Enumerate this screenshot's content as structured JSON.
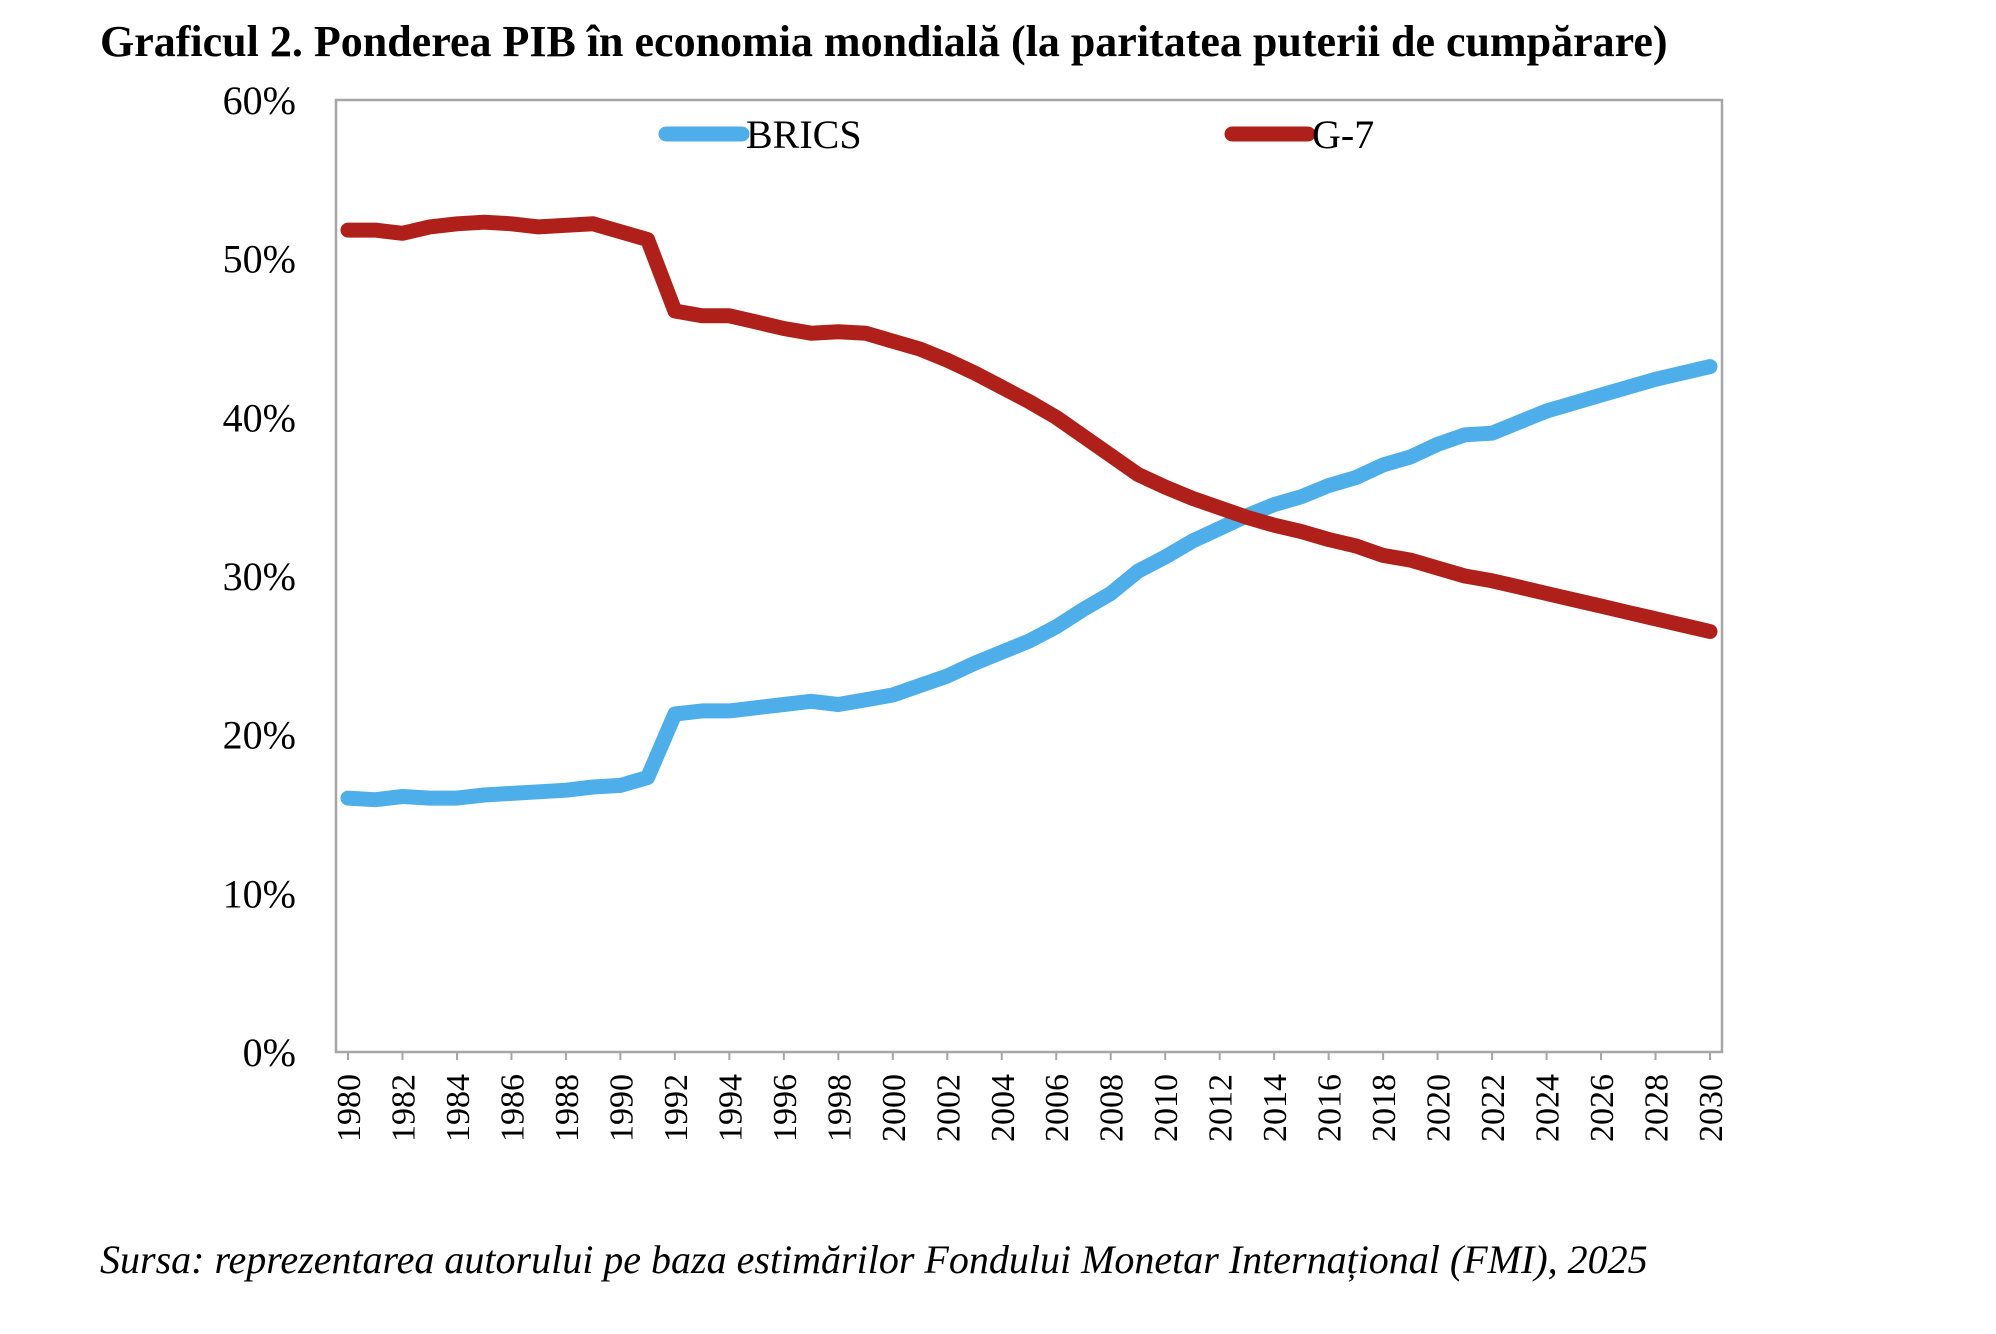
{
  "title": "Graficul 2. Ponderea PIB în economia mondială (la paritatea puterii de cumpărare)",
  "source": "Sursa: reprezentarea autorului pe baza estimărilor Fondului Monetar Internațional (FMI), 2025",
  "chart_data": {
    "type": "line",
    "title": "Graficul 2. Ponderea PIB în economia mondială (la paritatea puterii de cumpărare)",
    "xlabel": "",
    "ylabel": "",
    "ylim": [
      0,
      60
    ],
    "yticks": [
      "0%",
      "10%",
      "20%",
      "30%",
      "40%",
      "50%",
      "60%"
    ],
    "xticks": [
      "1980",
      "1982",
      "1984",
      "1986",
      "1988",
      "1990",
      "1992",
      "1994",
      "1996",
      "1998",
      "2000",
      "2002",
      "2004",
      "2006",
      "2008",
      "2010",
      "2012",
      "2014",
      "2016",
      "2018",
      "2020",
      "2022",
      "2024",
      "2026",
      "2028",
      "2030"
    ],
    "grid": false,
    "legend": "top",
    "x": [
      1980,
      1981,
      1982,
      1983,
      1984,
      1985,
      1986,
      1987,
      1988,
      1989,
      1990,
      1991,
      1992,
      1993,
      1994,
      1995,
      1996,
      1997,
      1998,
      1999,
      2000,
      2001,
      2002,
      2003,
      2004,
      2005,
      2006,
      2007,
      2008,
      2009,
      2010,
      2011,
      2012,
      2013,
      2014,
      2015,
      2016,
      2017,
      2018,
      2019,
      2020,
      2021,
      2022,
      2023,
      2024,
      2025,
      2026,
      2027,
      2028,
      2029,
      2030
    ],
    "series": [
      {
        "name": "BRICS",
        "color": "#4eaeea",
        "values": [
          16.0,
          15.9,
          16.1,
          16.0,
          16.0,
          16.2,
          16.3,
          16.4,
          16.5,
          16.7,
          16.8,
          17.3,
          21.3,
          21.5,
          21.5,
          21.7,
          21.9,
          22.1,
          21.9,
          22.2,
          22.5,
          23.1,
          23.7,
          24.5,
          25.2,
          25.9,
          26.8,
          27.9,
          28.9,
          30.3,
          31.2,
          32.2,
          33.0,
          33.8,
          34.5,
          35.0,
          35.7,
          36.2,
          37.0,
          37.5,
          38.3,
          38.9,
          39.0,
          39.7,
          40.4,
          40.9,
          41.4,
          41.9,
          42.4,
          42.8,
          43.2
        ]
      },
      {
        "name": "G-7",
        "color": "#b0201b",
        "values": [
          51.8,
          51.8,
          51.6,
          52.0,
          52.2,
          52.3,
          52.2,
          52.0,
          52.1,
          52.2,
          51.7,
          51.2,
          46.7,
          46.4,
          46.4,
          46.0,
          45.6,
          45.3,
          45.4,
          45.3,
          44.8,
          44.3,
          43.6,
          42.8,
          41.9,
          41.0,
          40.0,
          38.8,
          37.6,
          36.4,
          35.6,
          34.9,
          34.3,
          33.7,
          33.2,
          32.8,
          32.3,
          31.9,
          31.3,
          31.0,
          30.5,
          30.0,
          29.7,
          29.3,
          28.9,
          28.5,
          28.1,
          27.7,
          27.3,
          26.9,
          26.5
        ]
      }
    ]
  }
}
